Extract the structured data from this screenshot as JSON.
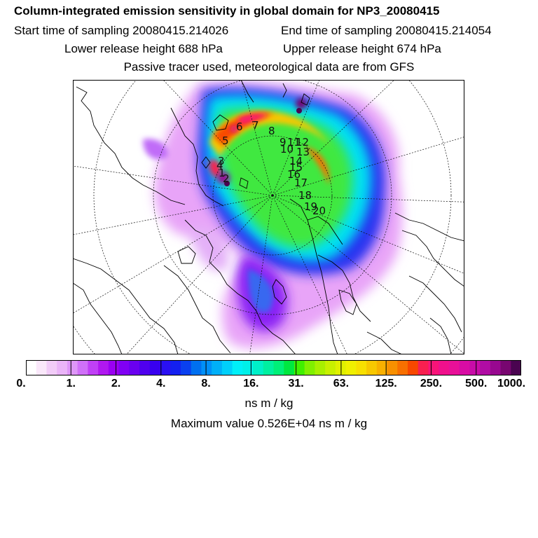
{
  "header": {
    "title": "Column-integrated emission sensitivity in global domain for NP3_20080415",
    "start": "Start time of sampling 20080415.214026",
    "end": "End time of sampling 20080415.214054",
    "lower": "Lower release height  688 hPa",
    "upper": "Upper release height  674 hPa",
    "note": "Passive tracer used, meteorological data are from GFS"
  },
  "chart_data": {
    "type": "heatmap",
    "projection": "north polar stereographic",
    "colorbar": {
      "tick_labels": [
        "0.",
        "1.",
        "2.",
        "4.",
        "8.",
        "16.",
        "31.",
        "63.",
        "125.",
        "250.",
        "500.",
        "1000."
      ],
      "tick_values": [
        0,
        1,
        2,
        4,
        8,
        16,
        31,
        63,
        125,
        250,
        500,
        1000
      ],
      "colors": [
        "#ffffff",
        "#fae8fa",
        "#f2ccf8",
        "#eab4f8",
        "#de96f8",
        "#d070f8",
        "#c040f6",
        "#b018f0",
        "#9a00f2",
        "#8000f4",
        "#6a00f0",
        "#5000ee",
        "#3800f0",
        "#2a10f2",
        "#1420f0",
        "#0a40f0",
        "#0070f0",
        "#0090f8",
        "#00b0f8",
        "#00d0fa",
        "#00f0f8",
        "#00f0e8",
        "#00f0c8",
        "#00f0a0",
        "#00f078",
        "#00e840",
        "#40f000",
        "#80f000",
        "#a8f000",
        "#c8f000",
        "#e0f000",
        "#f0f000",
        "#f8e000",
        "#f8c800",
        "#f8b000",
        "#f89000",
        "#f87000",
        "#f84800",
        "#f82050",
        "#f81478",
        "#f0108c",
        "#e81098",
        "#d80ca4",
        "#c80ca8",
        "#b00ca4",
        "#980890",
        "#780670",
        "#4a0450"
      ]
    },
    "units": "ns m / kg",
    "maximum_label": "Maximum value  0.526E+04 ns m / kg",
    "maximum_value": 5260,
    "release_point_labels": [
      "1",
      "2",
      "3",
      "4",
      "5",
      "6",
      "7",
      "8",
      "9",
      "10",
      "11",
      "12",
      "13",
      "14",
      "15",
      "16",
      "17",
      "18",
      "19",
      "20"
    ]
  }
}
